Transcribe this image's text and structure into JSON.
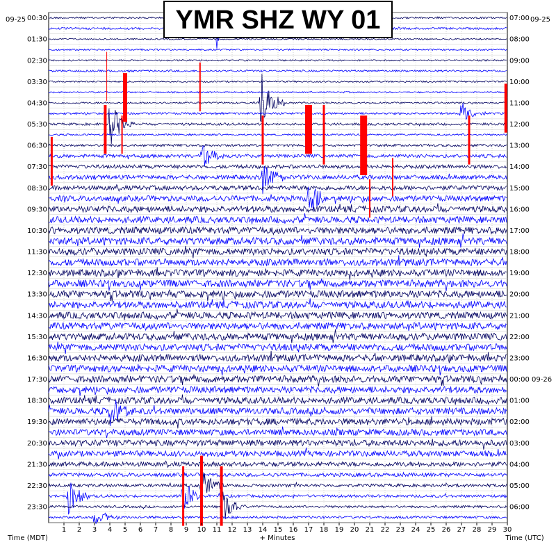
{
  "title": "YMR SHZ WY 01",
  "left_date": "09-25",
  "right_date": "09-25",
  "left_axis_label": "Time (MDT)",
  "right_axis_label": "Time (UTC)",
  "bottom_axis_label": "+ Minutes",
  "chart_data": {
    "type": "line",
    "title": "YMR SHZ WY 01",
    "xlabel": "+ Minutes",
    "xlim": [
      0,
      30
    ],
    "x_ticks": [
      "1",
      "2",
      "3",
      "4",
      "5",
      "6",
      "7",
      "8",
      "9",
      "10",
      "11",
      "12",
      "13",
      "14",
      "15",
      "16",
      "17",
      "18",
      "19",
      "20",
      "21",
      "22",
      "23",
      "24",
      "25",
      "26",
      "27",
      "28",
      "29",
      "30"
    ],
    "left_ticks": [
      "00:30",
      "01:30",
      "02:30",
      "03:30",
      "04:30",
      "05:30",
      "06:30",
      "07:30",
      "08:30",
      "09:30",
      "10:30",
      "11:30",
      "12:30",
      "13:30",
      "14:30",
      "15:30",
      "16:30",
      "17:30",
      "18:30",
      "19:30",
      "20:30",
      "21:30",
      "22:30",
      "23:30"
    ],
    "right_ticks": [
      "07:00",
      "08:00",
      "09:00",
      "10:00",
      "11:00",
      "12:00",
      "13:00",
      "14:00",
      "15:00",
      "16:00",
      "17:00",
      "18:00",
      "19:00",
      "20:00",
      "21:00",
      "22:00",
      "23:00",
      "00:00 09-26",
      "01:00",
      "02:00",
      "03:00",
      "04:00",
      "05:00",
      "06:00"
    ],
    "rows_per_hour": 2,
    "trace_colors": [
      "#000060",
      "#0000ff"
    ],
    "clip_color": "#ff0000",
    "grid": true,
    "row_activity": [
      0.15,
      0.2,
      0.1,
      0.12,
      0.12,
      0.18,
      0.12,
      0.12,
      0.15,
      0.2,
      0.25,
      0.15,
      0.25,
      0.4,
      0.45,
      0.55,
      0.6,
      0.75,
      0.85,
      0.9,
      0.95,
      1.0,
      0.95,
      0.95,
      0.95,
      1.0,
      1.0,
      0.95,
      0.95,
      0.95,
      0.95,
      0.95,
      0.95,
      0.95,
      0.95,
      0.9,
      0.9,
      0.9,
      0.9,
      0.85,
      0.85,
      0.75,
      0.6,
      0.45,
      0.35,
      0.3,
      0.25,
      0.25
    ],
    "events": [
      {
        "row": 1,
        "minute": 11.0,
        "amp": 3.5
      },
      {
        "row": 8,
        "minute": 13.9,
        "amp": 5
      },
      {
        "row": 10,
        "minute": 4.0,
        "amp": 4
      },
      {
        "row": 9,
        "minute": 27.0,
        "amp": 2
      },
      {
        "row": 13,
        "minute": 10.0,
        "amp": 3
      },
      {
        "row": 15,
        "minute": 14.0,
        "amp": 3
      },
      {
        "row": 17,
        "minute": 17.0,
        "amp": 3
      },
      {
        "row": 37,
        "minute": 4.0,
        "amp": 3
      },
      {
        "row": 44,
        "minute": 10.0,
        "amp": 3
      },
      {
        "row": 45,
        "minute": 1.3,
        "amp": 3
      },
      {
        "row": 45,
        "minute": 8.8,
        "amp": 3
      },
      {
        "row": 46,
        "minute": 11.3,
        "amp": 3
      },
      {
        "row": 47,
        "minute": 3.0,
        "amp": 2
      }
    ],
    "clips": [
      {
        "minute": 3.8,
        "row_start": 4,
        "row_end": 7,
        "width": 1
      },
      {
        "minute": 5.0,
        "row_start": 6,
        "row_end": 9,
        "width": 6
      },
      {
        "minute": 9.9,
        "row_start": 5,
        "row_end": 8,
        "width": 2
      },
      {
        "minute": 3.7,
        "row_start": 9,
        "row_end": 12,
        "width": 4
      },
      {
        "minute": 4.8,
        "row_start": 10,
        "row_end": 12,
        "width": 2
      },
      {
        "minute": 14.0,
        "row_start": 10,
        "row_end": 13,
        "width": 3
      },
      {
        "minute": 17.0,
        "row_start": 9,
        "row_end": 12,
        "width": 10
      },
      {
        "minute": 18.0,
        "row_start": 9,
        "row_end": 13,
        "width": 3
      },
      {
        "minute": 20.6,
        "row_start": 10,
        "row_end": 14,
        "width": 10
      },
      {
        "minute": 0.2,
        "row_start": 12,
        "row_end": 15,
        "width": 3
      },
      {
        "minute": 27.5,
        "row_start": 10,
        "row_end": 13,
        "width": 3
      },
      {
        "minute": 29.9,
        "row_start": 7,
        "row_end": 10,
        "width": 4
      },
      {
        "minute": 22.5,
        "row_start": 14,
        "row_end": 16,
        "width": 2
      },
      {
        "minute": 21.0,
        "row_start": 16,
        "row_end": 18,
        "width": 2
      },
      {
        "minute": 8.8,
        "row_start": 43,
        "row_end": 47,
        "width": 3
      },
      {
        "minute": 10.0,
        "row_start": 42,
        "row_end": 47,
        "width": 4
      },
      {
        "minute": 11.3,
        "row_start": 43,
        "row_end": 47,
        "width": 4
      }
    ]
  }
}
